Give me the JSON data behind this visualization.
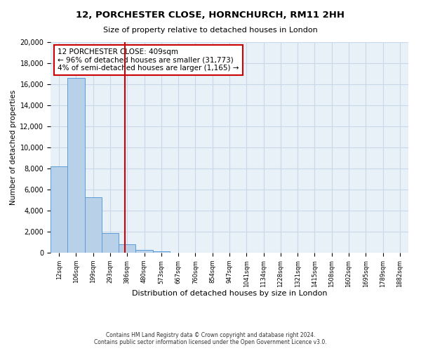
{
  "title": "12, PORCHESTER CLOSE, HORNCHURCH, RM11 2HH",
  "subtitle": "Size of property relative to detached houses in London",
  "xlabel": "Distribution of detached houses by size in London",
  "ylabel": "Number of detached properties",
  "bar_labels": [
    "12sqm",
    "106sqm",
    "199sqm",
    "293sqm",
    "386sqm",
    "480sqm",
    "573sqm",
    "667sqm",
    "760sqm",
    "854sqm",
    "947sqm",
    "1041sqm",
    "1134sqm",
    "1228sqm",
    "1321sqm",
    "1415sqm",
    "1508sqm",
    "1602sqm",
    "1695sqm",
    "1789sqm",
    "1882sqm"
  ],
  "bar_values": [
    8200,
    16600,
    5300,
    1850,
    800,
    280,
    160,
    0,
    0,
    0,
    0,
    0,
    0,
    0,
    0,
    0,
    0,
    0,
    0,
    0,
    0
  ],
  "bar_color": "#b8d0e8",
  "bar_edgecolor": "#5b9bd5",
  "vline_x": 4.35,
  "vline_color": "#cc0000",
  "annotation_line1": "12 PORCHESTER CLOSE: 409sqm",
  "annotation_line2": "← 96% of detached houses are smaller (31,773)",
  "annotation_line3": "4% of semi-detached houses are larger (1,165) →",
  "annotation_box_facecolor": "#ffffff",
  "annotation_box_edgecolor": "#cc0000",
  "ylim": [
    0,
    20000
  ],
  "yticks": [
    0,
    2000,
    4000,
    6000,
    8000,
    10000,
    12000,
    14000,
    16000,
    18000,
    20000
  ],
  "grid_color": "#c8d8e8",
  "background_color": "#e8f0f8",
  "footer_line1": "Contains HM Land Registry data © Crown copyright and database right 2024.",
  "footer_line2": "Contains public sector information licensed under the Open Government Licence v3.0."
}
